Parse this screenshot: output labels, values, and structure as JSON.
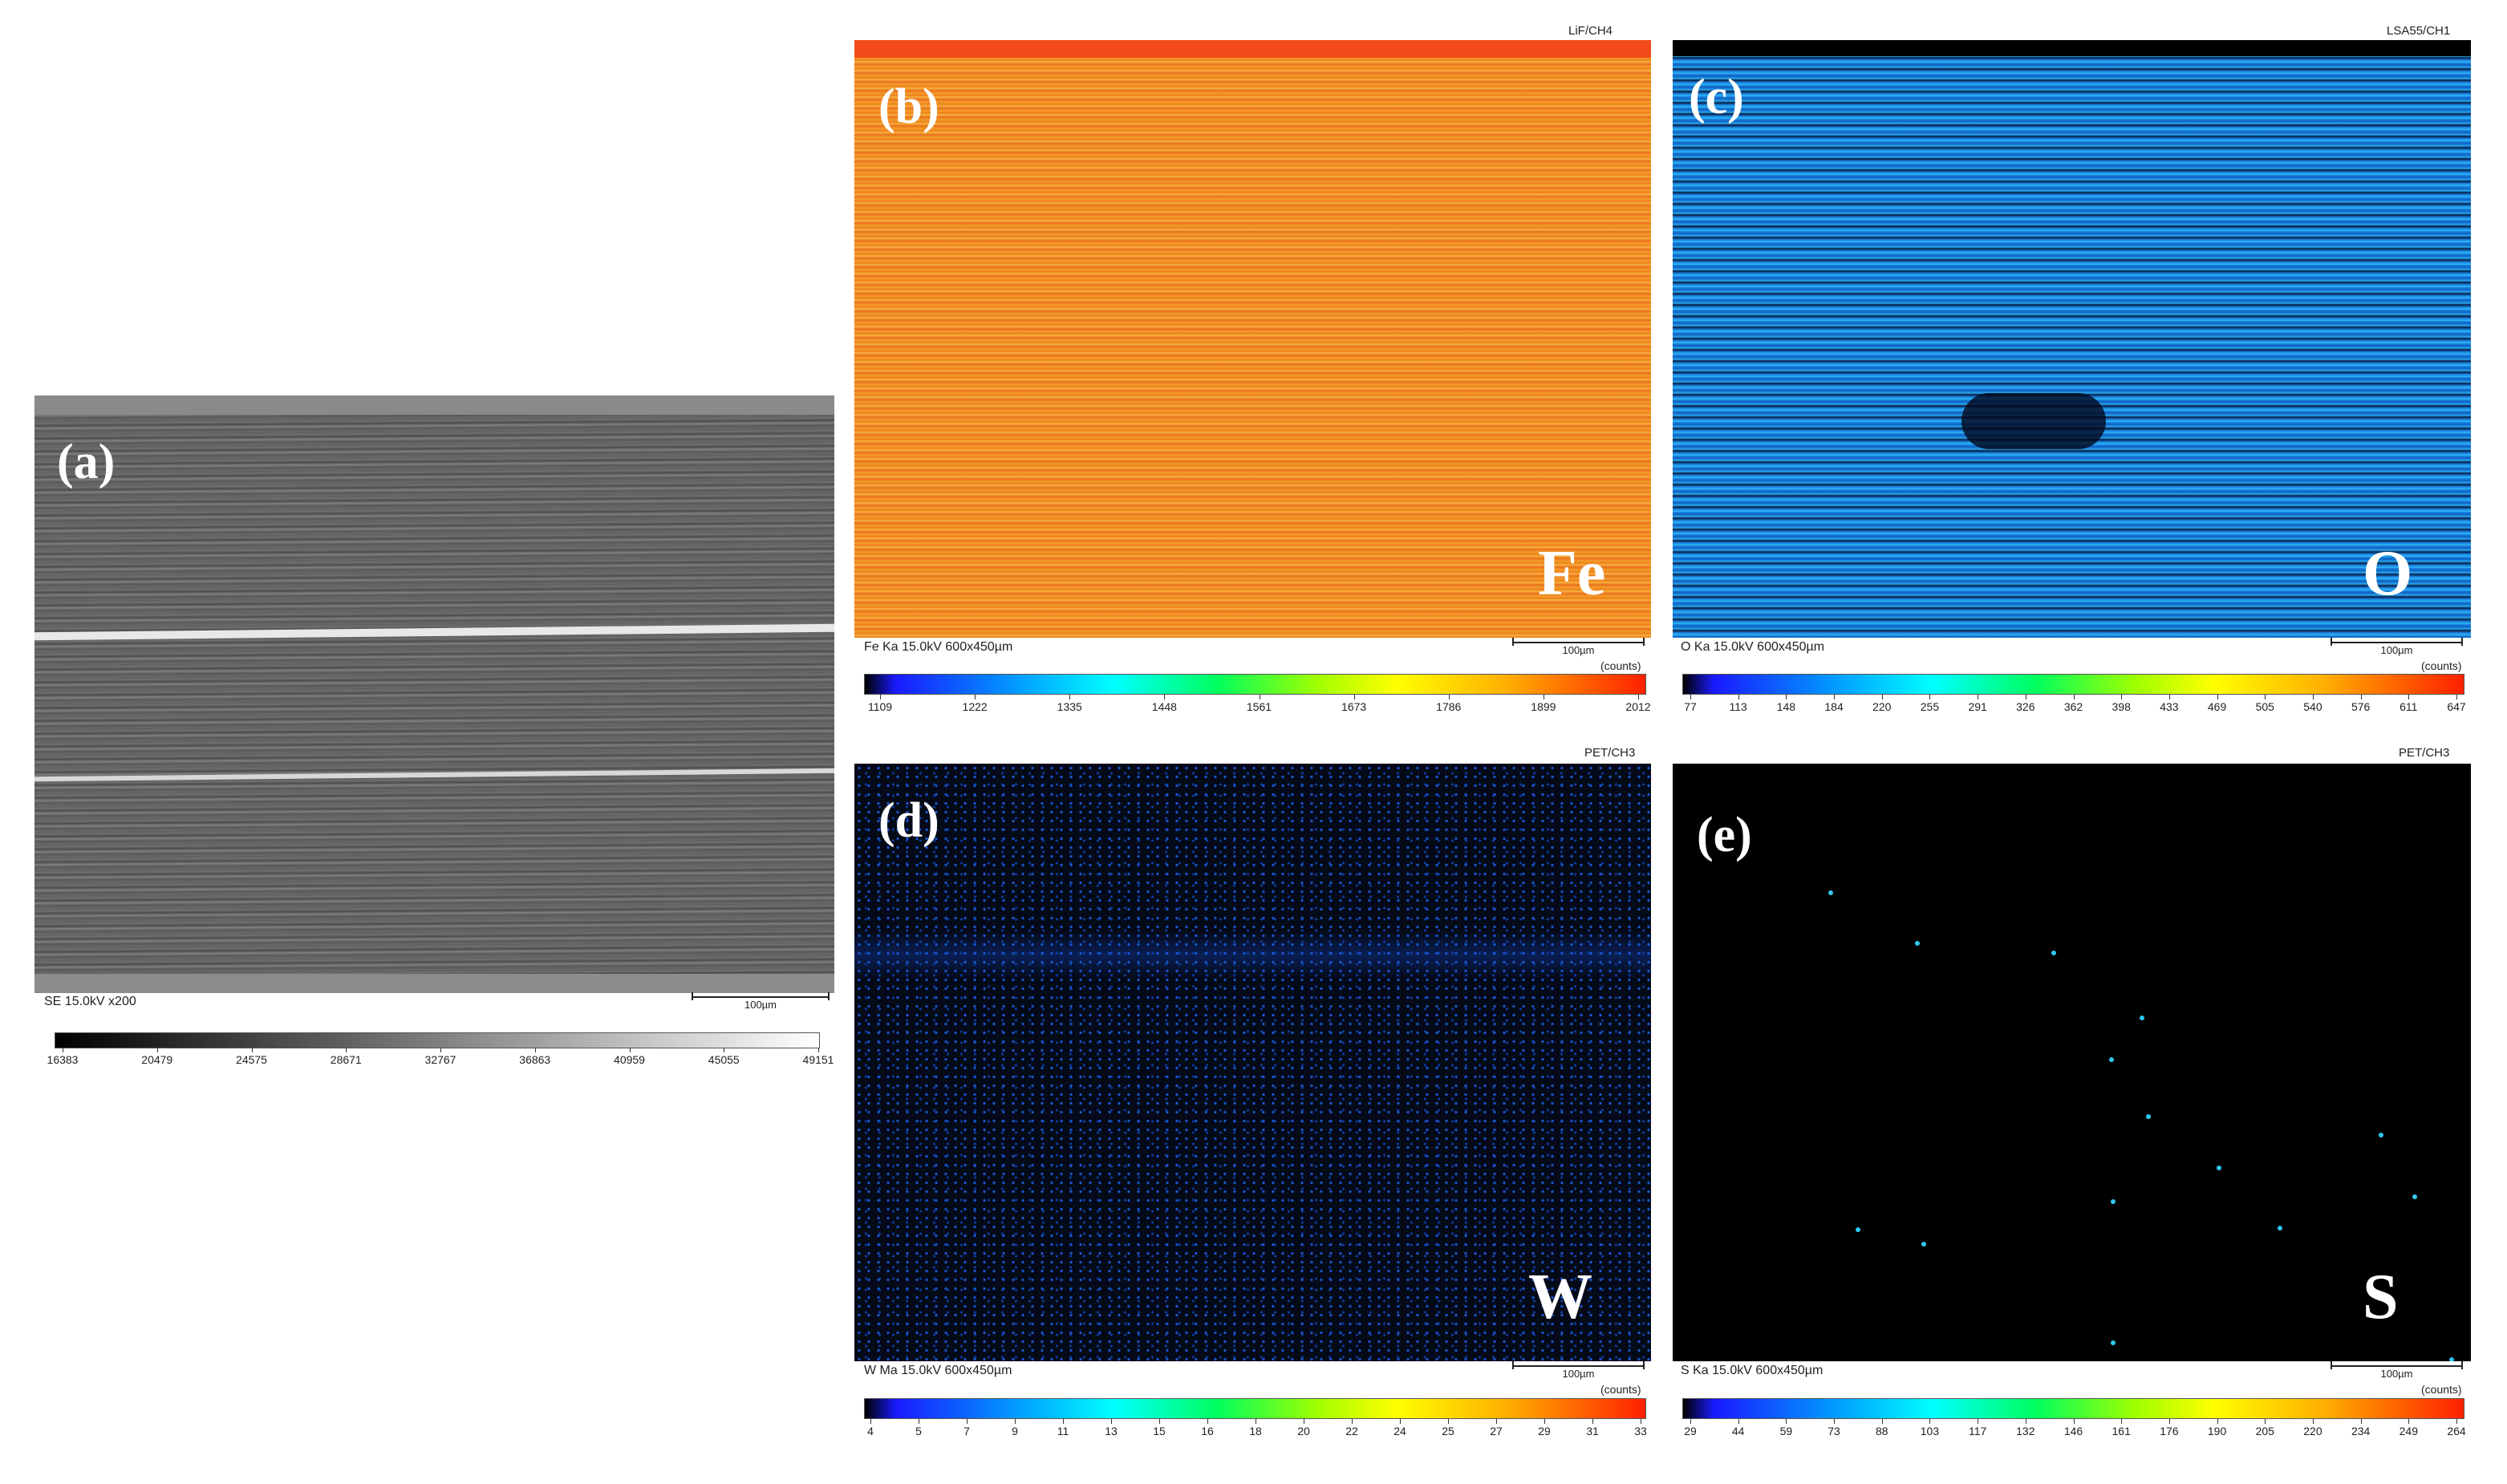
{
  "panels": {
    "a": {
      "letter": "(a)",
      "caption": "SE 15.0kV  x200",
      "scale": "100µm",
      "ticks": [
        "16383",
        "20479",
        "24575",
        "28671",
        "32767",
        "36863",
        "40959",
        "45055",
        "49151"
      ]
    },
    "b": {
      "letter": "(b)",
      "element": "Fe",
      "detector": "LiF/CH4",
      "caption": "Fe Ka 15.0kV  600x450µm",
      "scale": "100µm",
      "counts": "(counts)",
      "ticks": [
        "1109",
        "1222",
        "1335",
        "1448",
        "1561",
        "1673",
        "1786",
        "1899",
        "2012"
      ]
    },
    "c": {
      "letter": "(c)",
      "element": "O",
      "detector": "LSA55/CH1",
      "caption": "O Ka 15.0kV  600x450µm",
      "scale": "100µm",
      "counts": "(counts)",
      "ticks": [
        "77",
        "113",
        "148",
        "184",
        "220",
        "255",
        "291",
        "326",
        "362",
        "398",
        "433",
        "469",
        "505",
        "540",
        "576",
        "611",
        "647"
      ]
    },
    "d": {
      "letter": "(d)",
      "element": "W",
      "detector": "PET/CH3",
      "caption": "W Ma 15.0kV  600x450µm",
      "scale": "100µm",
      "counts": "(counts)",
      "ticks": [
        "4",
        "5",
        "7",
        "9",
        "11",
        "13",
        "15",
        "16",
        "18",
        "20",
        "22",
        "24",
        "25",
        "27",
        "29",
        "31",
        "33"
      ]
    },
    "e": {
      "letter": "(e)",
      "element": "S",
      "detector": "PET/CH3",
      "caption": "S Ka 15.0kV  600x450µm",
      "scale": "100µm",
      "counts": "(counts)",
      "ticks": [
        "29",
        "44",
        "59",
        "73",
        "88",
        "103",
        "117",
        "132",
        "146",
        "161",
        "176",
        "190",
        "205",
        "220",
        "234",
        "249",
        "264"
      ]
    }
  },
  "colors": {
    "fe_map": "#f08a1c",
    "o_map": "#1f8fe8",
    "w_map": "#050a18",
    "s_map": "#000000",
    "jet_low": "#000000",
    "jet_high": "#ff2000"
  }
}
